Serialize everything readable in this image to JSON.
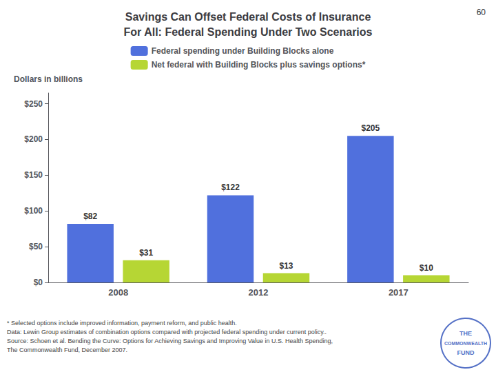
{
  "chart_data": {
    "type": "bar",
    "title": "Savings Can Offset Federal Costs of Insurance\nFor All: Federal Spending Under Two Scenarios",
    "ylabel": "Dollars in billions",
    "categories": [
      "2008",
      "2012",
      "2017"
    ],
    "series": [
      {
        "name": "Federal spending under Building Blocks alone",
        "values": [
          82,
          122,
          205
        ],
        "value_labels": [
          "$82",
          "$122",
          "$205"
        ]
      },
      {
        "name": "Net federal with Building Blocks plus savings options*",
        "values": [
          31,
          13,
          10
        ],
        "value_labels": [
          "$31",
          "$13",
          "$10"
        ]
      }
    ],
    "ylim": [
      0,
      265
    ],
    "yticks": [
      {
        "value": 0,
        "label": "$0"
      },
      {
        "value": 50,
        "label": "$50"
      },
      {
        "value": 100,
        "label": "$100"
      },
      {
        "value": 150,
        "label": "$150"
      },
      {
        "value": 200,
        "label": "$200"
      },
      {
        "value": 250,
        "label": "$250"
      }
    ],
    "grid": false,
    "legend": "top",
    "data_labels": true,
    "page_number": "60",
    "footnotes": [
      "* Selected options include improved information, payment reform, and public health.",
      "Data: Lewin Group estimates of combination options compared with projected federal spending under current policy..",
      "Source: Schoen et al. Bending the Curve: Options for Achieving Savings and Improving Value in U.S. Health Spending,",
      "The Commonwealth Fund, December 2007."
    ],
    "logo": [
      "THE",
      "COMMONWEALTH",
      "FUND"
    ]
  }
}
